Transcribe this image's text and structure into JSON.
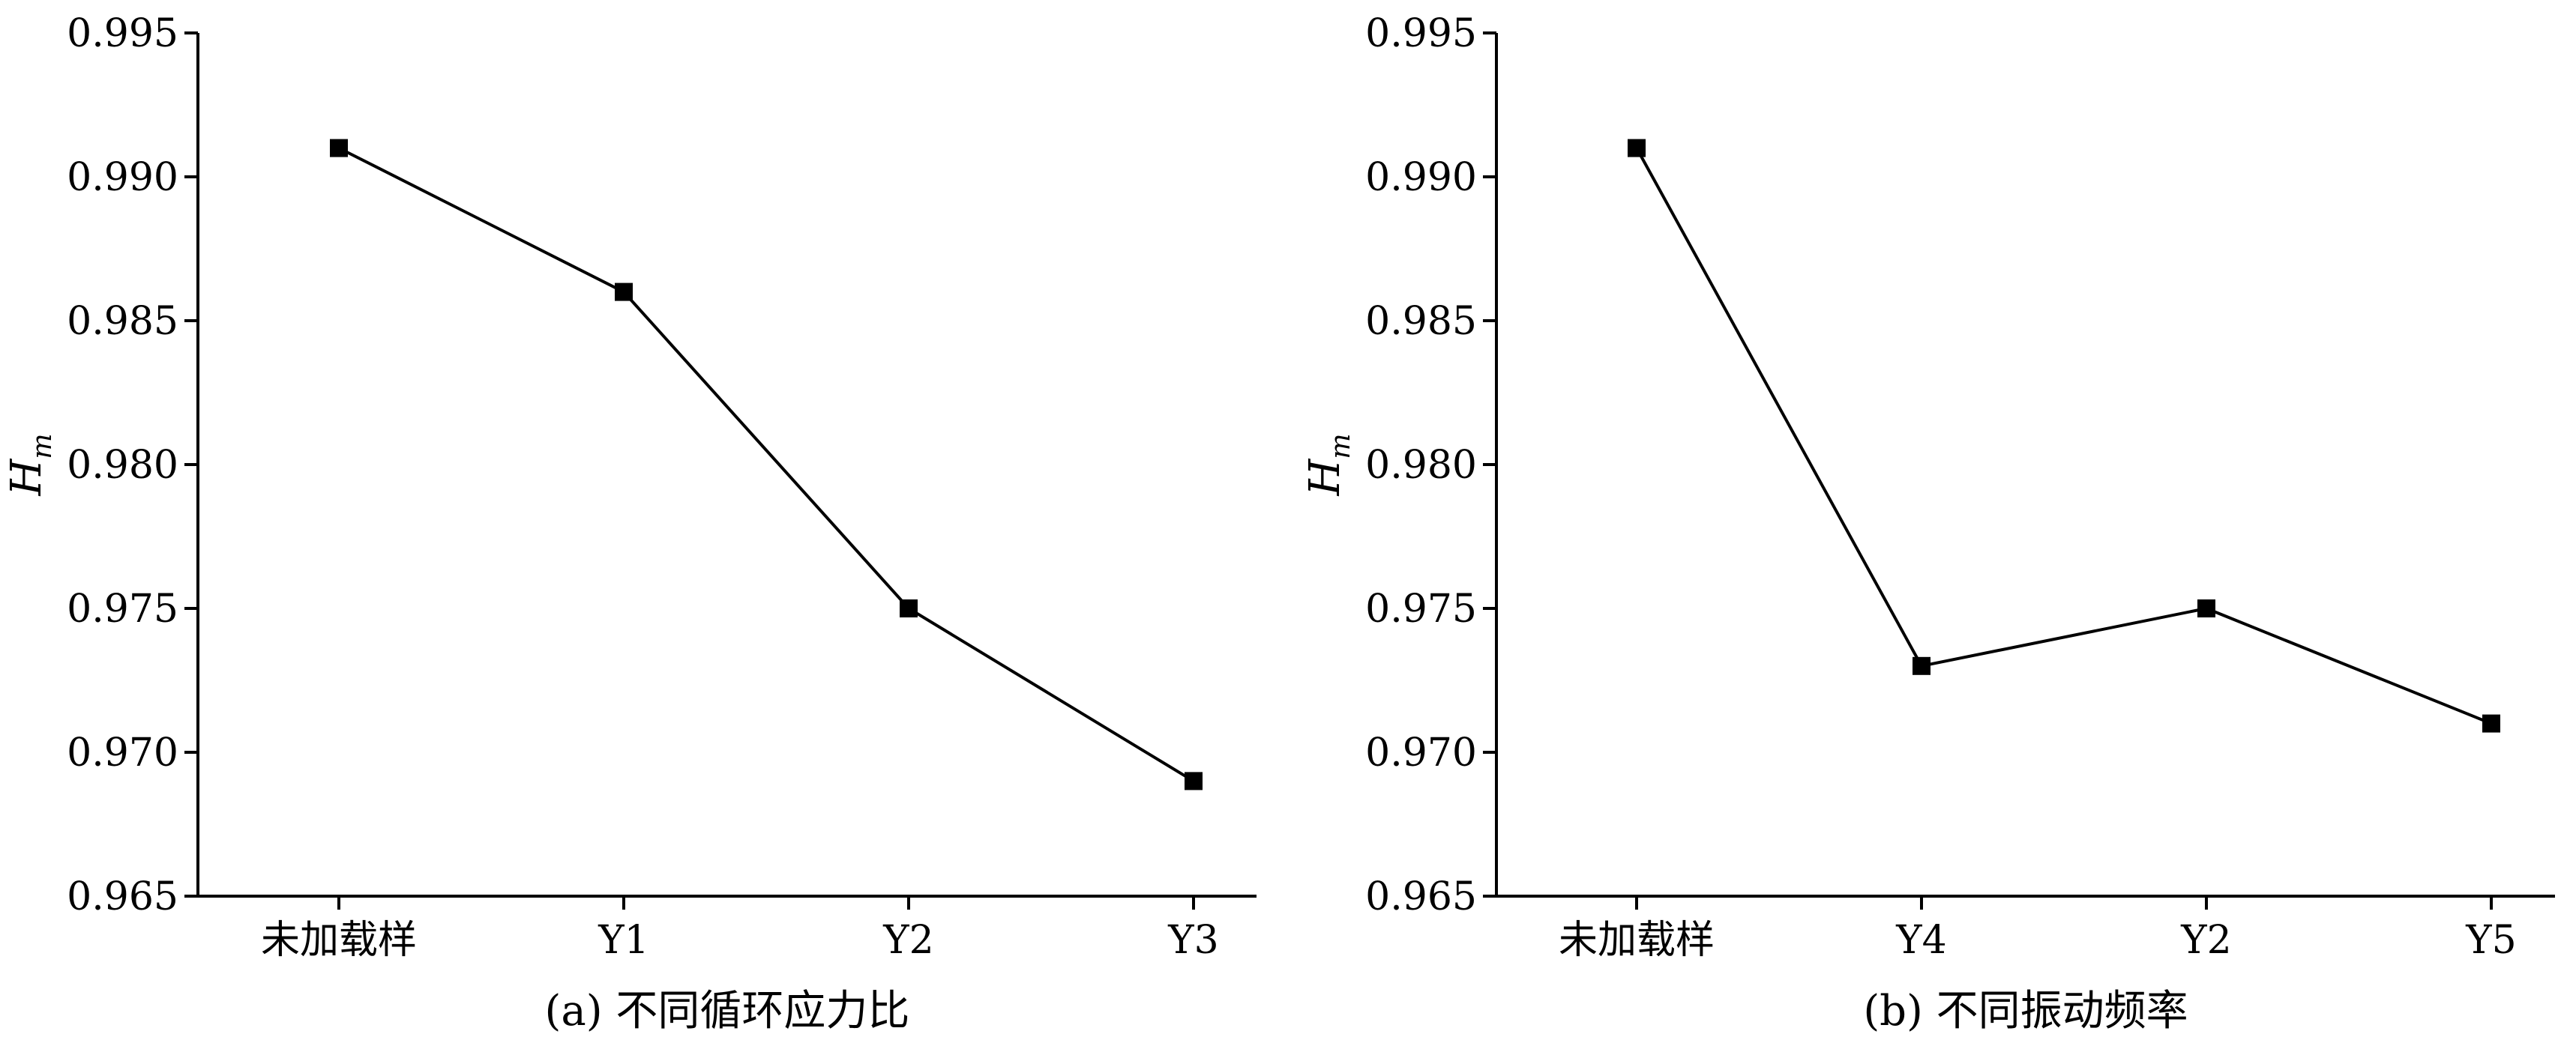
{
  "chart_data": [
    {
      "type": "line",
      "caption": "(a) 不同循环应力比",
      "ylabel": "H",
      "ylabel_sub": "m",
      "ylim": [
        0.965,
        0.995
      ],
      "yticks": [
        "0.965",
        "0.970",
        "0.975",
        "0.980",
        "0.985",
        "0.990",
        "0.995"
      ],
      "categories": [
        "未加载样",
        "Y1",
        "Y2",
        "Y3"
      ],
      "values": [
        0.991,
        0.986,
        0.975,
        0.969
      ],
      "grid": false,
      "marker": "square",
      "color": "#000000"
    },
    {
      "type": "line",
      "caption": "(b) 不同振动频率",
      "ylabel": "H",
      "ylabel_sub": "m",
      "ylim": [
        0.965,
        0.995
      ],
      "yticks": [
        "0.965",
        "0.970",
        "0.975",
        "0.980",
        "0.985",
        "0.990",
        "0.995"
      ],
      "categories": [
        "未加载样",
        "Y4",
        "Y2",
        "Y5"
      ],
      "values": [
        0.991,
        0.973,
        0.975,
        0.971
      ],
      "grid": false,
      "marker": "square",
      "color": "#000000"
    }
  ]
}
